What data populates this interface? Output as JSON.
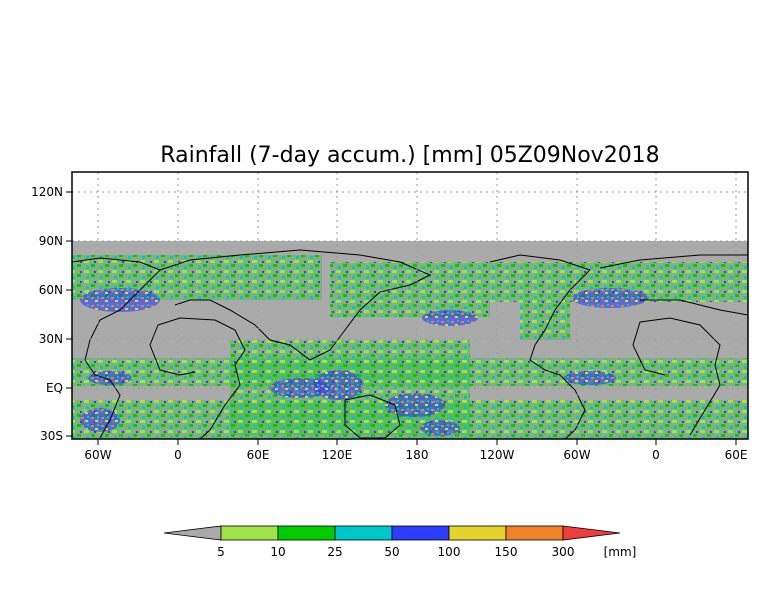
{
  "title": "Rainfall (7-day accum.) [mm] 05Z09Nov2018",
  "map": {
    "y_ticks": [
      "120N",
      "90N",
      "60N",
      "30N",
      "EQ",
      "30S"
    ],
    "x_ticks": [
      "60W",
      "0",
      "60E",
      "120E",
      "180",
      "120W",
      "60W",
      "0",
      "60E"
    ],
    "land_color": "#aaaaaa",
    "grid": true
  },
  "colorbar": {
    "unit": "[mm]",
    "boundaries": [
      "5",
      "10",
      "25",
      "50",
      "100",
      "150",
      "300"
    ],
    "colors": [
      "#aaaaaa",
      "#9ee34a",
      "#00cc00",
      "#00c8c8",
      "#2c3cff",
      "#e6d22c",
      "#f08228",
      "#f03c3c"
    ]
  }
}
